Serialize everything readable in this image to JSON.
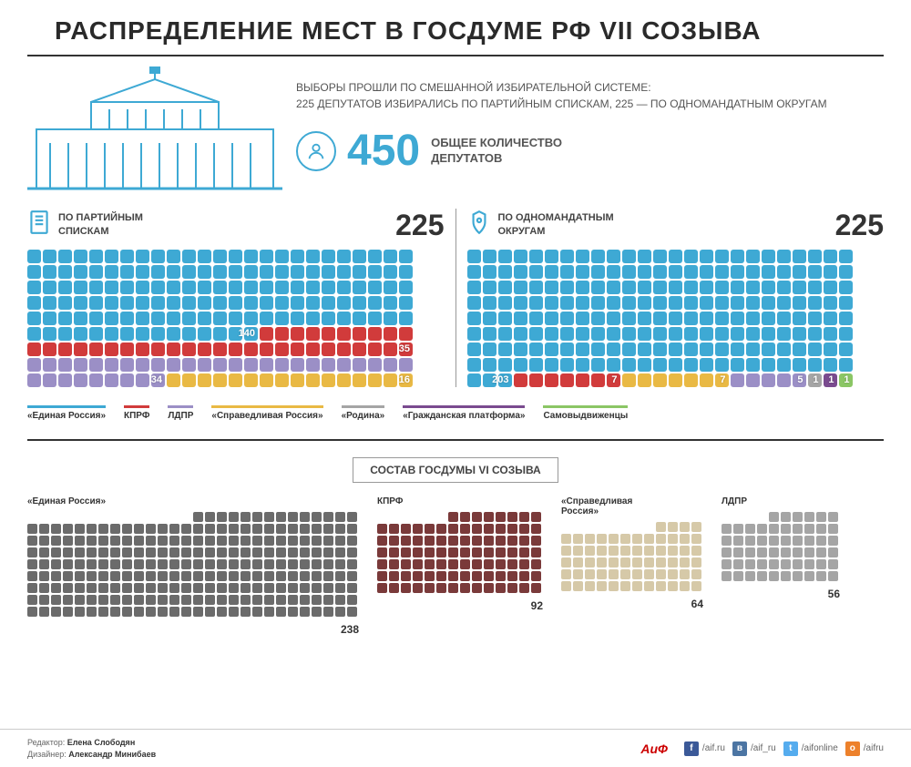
{
  "title": "РАСПРЕДЕЛЕНИЕ МЕСТ В ГОСДУМЕ РФ VII СОЗЫВА",
  "description": "ВЫБОРЫ ПРОШЛИ ПО СМЕШАННОЙ ИЗБИРАТЕЛЬНОЙ СИСТЕМЕ:\n225 ДЕПУТАТОВ ИЗБИРАЛИСЬ ПО ПАРТИЙНЫМ СПИСКАМ, 225 — ПО ОДНОМАНДАТНЫМ ОКРУГАМ",
  "total_number": "450",
  "total_label": "ОБЩЕЕ КОЛИЧЕСТВО\nДЕПУТАТОВ",
  "colors": {
    "er": "#3ea9d4",
    "kprf": "#d13b3b",
    "ldpr": "#9b8fc6",
    "sr": "#e9b944",
    "rodina": "#a5a5a5",
    "gp": "#7a4b8f",
    "self": "#8bc665",
    "vi_er": "#6b6b6b",
    "vi_kprf": "#7a3a3a",
    "vi_sr": "#d6c9a8",
    "vi_ldpr": "#a5a5a5",
    "accent": "#3ea9d4"
  },
  "halves": [
    {
      "label": "ПО ПАРТИЙНЫМ\nСПИСКАМ",
      "number": "225",
      "cols": 25,
      "segments": [
        {
          "key": "er",
          "count": 140,
          "callout": "140"
        },
        {
          "key": "kprf",
          "count": 35,
          "callout": "35"
        },
        {
          "key": "ldpr",
          "count": 34,
          "callout": "34"
        },
        {
          "key": "sr",
          "count": 16,
          "callout": "16"
        }
      ]
    },
    {
      "label": "ПО ОДНОМАНДАТНЫМ\nОКРУГАМ",
      "number": "225",
      "cols": 25,
      "segments": [
        {
          "key": "er",
          "count": 203,
          "callout": "203"
        },
        {
          "key": "kprf",
          "count": 7,
          "callout": "7"
        },
        {
          "key": "sr",
          "count": 7,
          "callout": "7"
        },
        {
          "key": "ldpr",
          "count": 5,
          "callout": "5"
        },
        {
          "key": "rodina",
          "count": 1,
          "callout": "1"
        },
        {
          "key": "gp",
          "count": 1,
          "callout": "1"
        },
        {
          "key": "self",
          "count": 1,
          "callout": "1"
        }
      ]
    }
  ],
  "legend": [
    {
      "key": "er",
      "name": "«Единая Россия»"
    },
    {
      "key": "kprf",
      "name": "КПРФ"
    },
    {
      "key": "ldpr",
      "name": "ЛДПР"
    },
    {
      "key": "sr",
      "name": "«Справедливая Россия»"
    },
    {
      "key": "rodina",
      "name": "«Родина»"
    },
    {
      "key": "gp",
      "name": "«Гражданская платформа»"
    },
    {
      "key": "self",
      "name": "Самовыдвиженцы"
    }
  ],
  "vi_button": "СОСТАВ ГОСДУМЫ VI СОЗЫВА",
  "vi_blocks": [
    {
      "name": "«Единая Россия»",
      "count": 238,
      "cols": 28,
      "color_key": "vi_er"
    },
    {
      "name": "КПРФ",
      "count": 92,
      "cols": 14,
      "color_key": "vi_kprf"
    },
    {
      "name": "«Справедливая\nРоссия»",
      "count": 64,
      "cols": 12,
      "color_key": "vi_sr"
    },
    {
      "name": "ЛДПР",
      "count": 56,
      "cols": 10,
      "color_key": "vi_ldpr"
    }
  ],
  "footer": {
    "editor_label": "Редактор:",
    "editor_name": "Елена Слободян",
    "designer_label": "Дизайнер:",
    "designer_name": "Александр Минибаев",
    "logo": "АРГУМЕНТЫ и ФАКТЫ",
    "socials": [
      {
        "platform": "fb",
        "handle": "/aif.ru",
        "bg": "#3b5998",
        "glyph": "f"
      },
      {
        "platform": "vk",
        "handle": "/aif_ru",
        "bg": "#4c75a3",
        "glyph": "в"
      },
      {
        "platform": "tw",
        "handle": "/aifonline",
        "bg": "#55acee",
        "glyph": "t"
      },
      {
        "platform": "ok",
        "handle": "/aifru",
        "bg": "#ed812b",
        "glyph": "o"
      }
    ]
  }
}
